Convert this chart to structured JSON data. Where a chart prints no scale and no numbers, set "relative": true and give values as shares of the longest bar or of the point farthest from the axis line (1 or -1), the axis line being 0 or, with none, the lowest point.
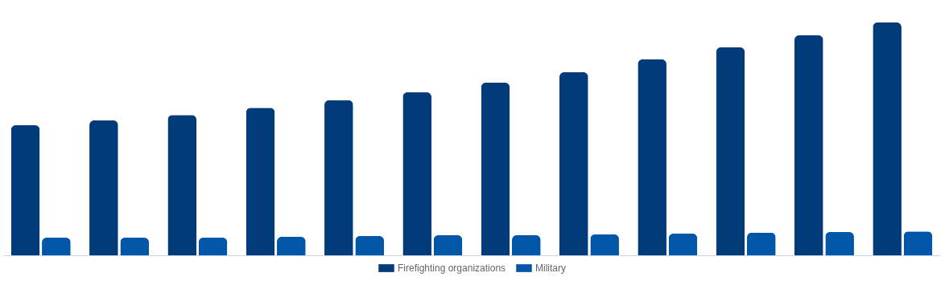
{
  "chart_data": {
    "type": "bar",
    "relative": true,
    "legend": "bottom",
    "categories": [
      null,
      null,
      null,
      null,
      null,
      null,
      null,
      null,
      null,
      null,
      null,
      null
    ],
    "series": [
      {
        "name": "Firefighting organizations",
        "color": "#023b7a",
        "values": [
          0.559,
          0.579,
          0.603,
          0.634,
          0.666,
          0.7,
          0.741,
          0.786,
          0.841,
          0.893,
          0.945,
          1
        ]
      },
      {
        "name": "Military",
        "color": "#0057a8",
        "values": [
          0.076,
          0.076,
          0.076,
          0.079,
          0.083,
          0.086,
          0.086,
          0.09,
          0.093,
          0.097,
          0.1,
          0.103
        ]
      }
    ]
  }
}
